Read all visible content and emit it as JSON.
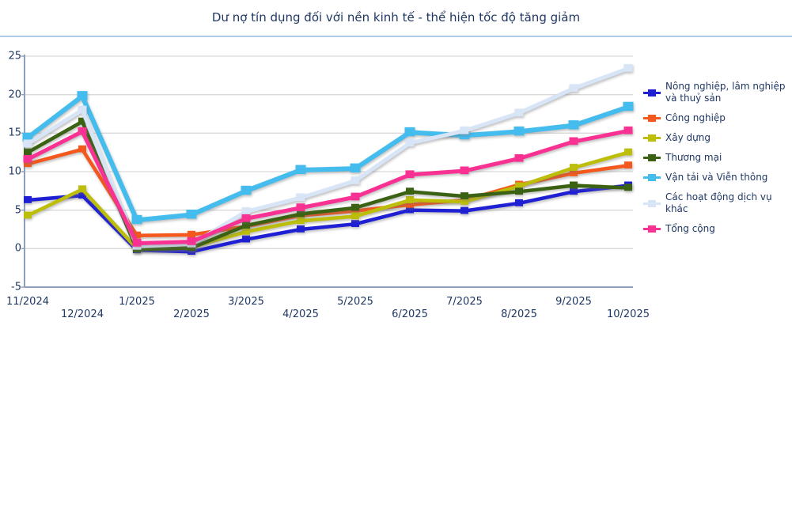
{
  "title": "Dư nợ tín dụng đối với nền kinh tế - thể hiện tốc độ tăng giảm",
  "colors": {
    "title_text": "#1f3864",
    "axis_label_text": "#1f3864",
    "legend_text": "#1f3864",
    "axis_line": "#8e9fbc",
    "grid_line": "#d9d9d9",
    "title_rule": "#aecbeb",
    "background": "#ffffff"
  },
  "chart_data": {
    "type": "line",
    "title": "Dư nợ tín dụng đối với nền kinh tế - thể hiện tốc độ tăng giảm",
    "xlabel": "",
    "ylabel": "",
    "ylim": [
      -5,
      25
    ],
    "y_ticks": [
      25,
      20,
      15,
      10,
      5,
      0,
      -5
    ],
    "grid": "horizontal",
    "legend_position": "right",
    "marker": "square",
    "categories": [
      "11/2024",
      "12/2024",
      "1/2025",
      "2/2025",
      "3/2025",
      "4/2025",
      "5/2025",
      "6/2025",
      "7/2025",
      "8/2025",
      "9/2025",
      "10/2025"
    ],
    "series": [
      {
        "name": "Nông nghiệp, lâm nghiệp và thuỷ sản",
        "color": "#1f1fd4",
        "line_width": 4.5,
        "marker_size": 10,
        "values": [
          6.3,
          6.9,
          -0.2,
          -0.4,
          1.2,
          2.5,
          3.2,
          5.0,
          4.9,
          5.9,
          7.4,
          8.2
        ]
      },
      {
        "name": "Công nghiệp",
        "color": "#f4581c",
        "line_width": 4.5,
        "marker_size": 10,
        "values": [
          11.0,
          12.9,
          1.7,
          1.8,
          2.9,
          4.3,
          4.9,
          5.7,
          6.3,
          8.3,
          9.8,
          10.8
        ]
      },
      {
        "name": "Xây dựng",
        "color": "#bdbe09",
        "line_width": 4.5,
        "marker_size": 10,
        "values": [
          4.3,
          7.7,
          0.0,
          0.2,
          2.2,
          3.6,
          4.2,
          6.3,
          6.1,
          8.1,
          10.5,
          12.5
        ]
      },
      {
        "name": "Thương mại",
        "color": "#3a6212",
        "line_width": 4.5,
        "marker_size": 10,
        "values": [
          12.5,
          16.5,
          -0.1,
          0.1,
          3.0,
          4.5,
          5.3,
          7.4,
          6.8,
          7.4,
          8.2,
          7.9
        ]
      },
      {
        "name": "Vận tải và Viễn thông",
        "color": "#44bcee",
        "line_width": 6,
        "marker_size": 13,
        "values": [
          14.4,
          19.8,
          3.7,
          4.4,
          7.5,
          10.2,
          10.4,
          15.1,
          14.7,
          15.2,
          16.0,
          18.4
        ]
      },
      {
        "name": "Các hoạt động dịch vụ khác",
        "color": "#d8e5f7",
        "line_width": 5,
        "marker_size": 11,
        "values": [
          13.6,
          18.0,
          0.3,
          0.6,
          4.8,
          6.6,
          8.8,
          13.7,
          15.3,
          17.6,
          20.8,
          23.4
        ]
      },
      {
        "name": "Tổng cộng",
        "color": "#f83193",
        "line_width": 5,
        "marker_size": 11,
        "values": [
          11.6,
          15.2,
          0.7,
          0.9,
          3.9,
          5.3,
          6.7,
          9.6,
          10.1,
          11.7,
          13.9,
          15.3
        ]
      }
    ]
  }
}
